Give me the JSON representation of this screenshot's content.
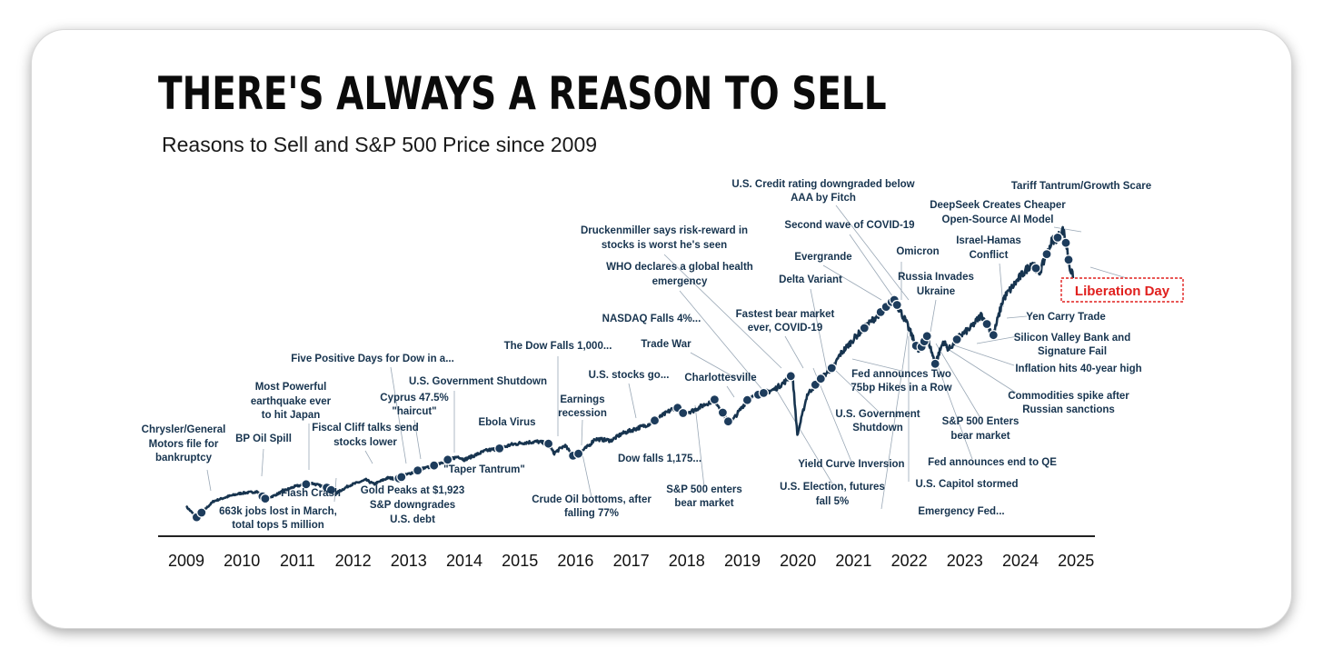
{
  "chart_data": {
    "type": "line",
    "title": "THERE'S ALWAYS A REASON TO SELL",
    "subtitle": "Reasons to Sell and S&P 500 Price since 2009",
    "xlabel": "",
    "ylabel": "",
    "xlim": [
      2009,
      2025.6
    ],
    "ylim": [
      600,
      6400
    ],
    "x_ticks": [
      "2009",
      "2010",
      "2011",
      "2012",
      "2013",
      "2014",
      "2015",
      "2016",
      "2017",
      "2018",
      "2019",
      "2020",
      "2021",
      "2022",
      "2023",
      "2024",
      "2025"
    ],
    "grid": false,
    "legend": "none",
    "line_color": "#17344f",
    "annotation_color": "#17344f",
    "highlight_color": "#e0201e",
    "series": [
      {
        "x": [
          2009.0,
          2009.19,
          2009.5,
          2009.8,
          2010.0,
          2010.3,
          2010.45,
          2010.6,
          2010.8,
          2011.0,
          2011.3,
          2011.6,
          2011.75,
          2012.0,
          2012.3,
          2012.45,
          2012.7,
          2012.88,
          2013.0,
          2013.3,
          2013.5,
          2013.8,
          2014.0,
          2014.1,
          2014.5,
          2014.8,
          2014.95,
          2015.2,
          2015.45,
          2015.65,
          2015.75,
          2015.95,
          2016.12,
          2016.4,
          2016.5,
          2016.8,
          2017.0,
          2017.5,
          2018.0,
          2018.1,
          2018.3,
          2018.7,
          2018.98,
          2019.3,
          2019.5,
          2019.8,
          2020.0,
          2020.13,
          2020.22,
          2020.4,
          2020.6,
          2020.9,
          2021.0,
          2021.3,
          2021.6,
          2021.9,
          2022.0,
          2022.2,
          2022.45,
          2022.6,
          2022.75,
          2022.9,
          2023.0,
          2023.2,
          2023.4,
          2023.6,
          2023.82,
          2024.0,
          2024.3,
          2024.55,
          2024.65,
          2024.9,
          2025.0,
          2025.1,
          2025.16,
          2025.22,
          2025.3
        ],
        "values": [
          900,
          700,
          1000,
          1100,
          1150,
          1180,
          1050,
          1100,
          1200,
          1280,
          1340,
          1250,
          1150,
          1300,
          1400,
          1320,
          1440,
          1420,
          1480,
          1600,
          1650,
          1780,
          1840,
          1780,
          1950,
          2000,
          2060,
          2100,
          2120,
          2080,
          1900,
          2050,
          1830,
          2050,
          2170,
          2140,
          2270,
          2450,
          2780,
          2650,
          2700,
          2910,
          2450,
          2900,
          3000,
          3100,
          3250,
          3380,
          2240,
          3000,
          3250,
          3550,
          3750,
          4100,
          4400,
          4700,
          4780,
          4400,
          3800,
          4100,
          3580,
          4000,
          3850,
          4100,
          4250,
          4500,
          4120,
          4800,
          5200,
          5500,
          5250,
          5900,
          5950,
          6100,
          5800,
          5400,
          5150
        ]
      }
    ],
    "annotations": [
      {
        "text": "Chrysler/General"
      },
      {
        "text": "Motors file for"
      },
      {
        "text": "bankruptcy"
      },
      {
        "text": "BP Oil Spill"
      },
      {
        "text": "Most Powerful"
      },
      {
        "text": "earthquake ever"
      },
      {
        "text": "to hit Japan"
      },
      {
        "text": "Flash Crash"
      },
      {
        "text": "663k jobs lost in March,"
      },
      {
        "text": "total tops 5 million"
      },
      {
        "text": "Fiscal Cliff talks send"
      },
      {
        "text": "stocks lower"
      },
      {
        "text": "Five Positive Days for Dow in a..."
      },
      {
        "text": "Gold Peaks at $1,923"
      },
      {
        "text": "S&P downgrades"
      },
      {
        "text": "U.S. debt"
      },
      {
        "text": "Cyprus 47.5%"
      },
      {
        "text": "\"haircut\""
      },
      {
        "text": "U.S. Government Shutdown"
      },
      {
        "text": "\"Taper Tantrum\""
      },
      {
        "text": "Ebola Virus"
      },
      {
        "text": "The Dow Falls 1,000..."
      },
      {
        "text": "Earnings"
      },
      {
        "text": "recession"
      },
      {
        "text": "Crude Oil bottoms, after"
      },
      {
        "text": "falling 77%"
      },
      {
        "text": "U.S. stocks go..."
      },
      {
        "text": "Dow falls 1,175..."
      },
      {
        "text": "Trade War"
      },
      {
        "text": "Charlottesville"
      },
      {
        "text": "S&P 500 enters"
      },
      {
        "text": "bear market"
      },
      {
        "text": "NASDAQ Falls 4%..."
      },
      {
        "text": "WHO declares a global health"
      },
      {
        "text": "emergency"
      },
      {
        "text": "Druckenmiller says risk-reward in"
      },
      {
        "text": "stocks is worst he's seen"
      },
      {
        "text": "Fastest bear market"
      },
      {
        "text": "ever, COVID-19"
      },
      {
        "text": "U.S. Credit rating downgraded below"
      },
      {
        "text": "AAA by Fitch"
      },
      {
        "text": "Second wave of COVID-19"
      },
      {
        "text": "Evergrande"
      },
      {
        "text": "Delta Variant"
      },
      {
        "text": "Omicron"
      },
      {
        "text": "Russia Invades"
      },
      {
        "text": "Ukraine"
      },
      {
        "text": "Fed announces Two"
      },
      {
        "text": "75bp Hikes in a Row"
      },
      {
        "text": "U.S. Government"
      },
      {
        "text": "Shutdown"
      },
      {
        "text": "Yield Curve Inversion"
      },
      {
        "text": "U.S. Election, futures"
      },
      {
        "text": "fall 5%"
      },
      {
        "text": "Fed announces end to QE"
      },
      {
        "text": "U.S. Capitol stormed"
      },
      {
        "text": "Emergency Fed..."
      },
      {
        "text": "S&P 500 Enters"
      },
      {
        "text": "bear market"
      },
      {
        "text": "Commodities spike after"
      },
      {
        "text": "Russian sanctions"
      },
      {
        "text": "Inflation hits 40-year high"
      },
      {
        "text": "Silicon Valley Bank and"
      },
      {
        "text": "Signature Fail"
      },
      {
        "text": "Yen Carry Trade"
      },
      {
        "text": "Israel-Hamas"
      },
      {
        "text": "Conflict"
      },
      {
        "text": "DeepSeek Creates Cheaper"
      },
      {
        "text": "Open-Source AI Model"
      },
      {
        "text": "Tariff Tantrum/Growth Scare"
      }
    ],
    "highlight": {
      "text": "Liberation Day"
    },
    "markers_x": [
      2009.19,
      2009.28,
      2010.4,
      2010.45,
      2011.2,
      2011.58,
      2011.66,
      2012.9,
      2012.95,
      2013.25,
      2013.55,
      2013.8,
      2014.75,
      2015.65,
      2016.1,
      2016.2,
      2017.6,
      2018.02,
      2018.12,
      2018.7,
      2018.85,
      2018.95,
      2019.3,
      2019.5,
      2019.6,
      2020.1,
      2020.55,
      2020.65,
      2020.85,
      2021.45,
      2021.75,
      2021.85,
      2021.95,
      2022.0,
      2022.05,
      2022.4,
      2022.5,
      2022.55,
      2022.6,
      2022.75,
      2023.15,
      2023.7,
      2023.82,
      2024.6,
      2024.8,
      2025.0,
      2025.15,
      2025.2
    ]
  }
}
